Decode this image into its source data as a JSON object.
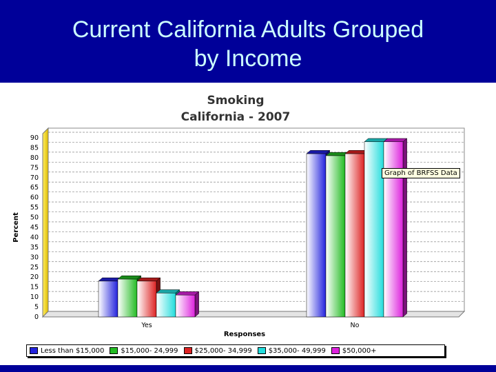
{
  "slide": {
    "title_line1": "Current California Adults Grouped",
    "title_line2": "by Income",
    "banner_color": "#000099",
    "title_color": "#ccffff"
  },
  "tooltip": {
    "text": "Graph of BRFSS Data"
  },
  "chart_data": {
    "type": "bar",
    "title": "Smoking",
    "subtitle": "California - 2007",
    "xlabel": "Responses",
    "ylabel": "Percent",
    "ylim": [
      0,
      90
    ],
    "yticks": [
      0,
      5,
      10,
      15,
      20,
      25,
      30,
      35,
      40,
      45,
      50,
      55,
      60,
      65,
      70,
      75,
      80,
      85,
      90
    ],
    "grid": true,
    "legend_position": "bottom",
    "categories": [
      "Yes",
      "No"
    ],
    "series": [
      {
        "name": "Less than $15,000",
        "color": "#2222dd",
        "values": [
          18,
          82
        ]
      },
      {
        "name": "$15,000- 24,999",
        "color": "#22bb22",
        "values": [
          19,
          81
        ]
      },
      {
        "name": "$25,000- 34,999",
        "color": "#dd2222",
        "values": [
          18,
          82
        ]
      },
      {
        "name": "$35,000- 49,999",
        "color": "#22dddd",
        "values": [
          12,
          88
        ]
      },
      {
        "name": "$50,000+",
        "color": "#dd22dd",
        "values": [
          11,
          88
        ]
      }
    ]
  }
}
